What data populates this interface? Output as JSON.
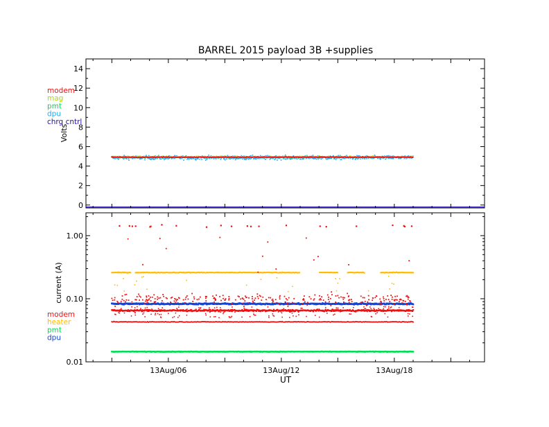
{
  "title": "BARREL 2015 payload 3B +supplies",
  "colors": {
    "modem": "#ee1111",
    "mag": "#aadd00",
    "heater": "#ffbb00",
    "pmt": "#00dd55",
    "dpu": "#22aaee",
    "dpu_current": "#1144dd",
    "chrg_cntrl": "#2211aa"
  },
  "chart_data": [
    {
      "type": "scatter",
      "panel": "voltage",
      "title": "BARREL 2015 payload 3B +supplies",
      "ylabel": "Volts",
      "xlabel": "",
      "ylim": [
        -0.3,
        15
      ],
      "yscale": "linear",
      "yticks": [
        "0",
        "2",
        "4",
        "6",
        "8",
        "10",
        "12",
        "14"
      ],
      "legend": [
        "modem",
        "mag",
        "pmt",
        "dpu",
        "chrg cntrl"
      ],
      "legend_placement": "left",
      "xlim": [
        "13Aug/01 15:00",
        "13Aug/22 19:00"
      ],
      "series": [
        {
          "name": "dpu",
          "typical": 4.85,
          "spread": 0.22,
          "x_range": [
            "13Aug/03",
            "13Aug/19"
          ]
        },
        {
          "name": "pmt",
          "typical": 4.9,
          "spread": 0.08,
          "x_range": [
            "13Aug/03",
            "13Aug/19"
          ]
        },
        {
          "name": "mag",
          "typical": 4.95,
          "spread": 0.06,
          "x_range": [
            "13Aug/03",
            "13Aug/19"
          ]
        },
        {
          "name": "modem",
          "typical": 4.9,
          "spread": 0.05,
          "x_range": [
            "13Aug/03",
            "13Aug/19"
          ]
        },
        {
          "name": "chrg cntrl",
          "typical": -0.2,
          "spread": 0,
          "x_range": [
            "13Aug/01 15:00",
            "13Aug/22 19:00"
          ]
        }
      ]
    },
    {
      "type": "scatter",
      "panel": "current",
      "ylabel": "current (A)",
      "xlabel": "UT",
      "yscale": "log",
      "ylim": [
        0.01,
        2.3
      ],
      "yticks": [
        "0.01",
        "0.10",
        "1.00"
      ],
      "xticks": [
        "13Aug/06",
        "13Aug/12",
        "13Aug/18"
      ],
      "xlim": [
        "13Aug/01 15:00",
        "13Aug/22 19:00"
      ],
      "legend": [
        "modem",
        "heater",
        "pmt",
        "dpu"
      ],
      "legend_placement": "left",
      "series": [
        {
          "name": "heater",
          "typical": 0.26,
          "x_range": [
            "13Aug/03",
            "13Aug/19"
          ],
          "gaps": [
            [
              "13Aug/04",
              "13Aug/04 06:00"
            ],
            [
              "13Aug/13",
              "13Aug/14"
            ],
            [
              "13Aug/15",
              "13Aug/15 12:00"
            ],
            [
              "13Aug/16 10:00",
              "13Aug/17 06:00"
            ]
          ]
        },
        {
          "name": "dpu",
          "typical": 0.083,
          "x_range": [
            "13Aug/03",
            "13Aug/19"
          ]
        },
        {
          "name": "modem",
          "typical": 0.065,
          "x_range": [
            "13Aug/03",
            "13Aug/19"
          ]
        },
        {
          "name": "modem",
          "typical": 0.043,
          "x_range": [
            "13Aug/03",
            "13Aug/19"
          ]
        },
        {
          "name": "modem",
          "typical": 0.1,
          "x_range": [
            "13Aug/03",
            "13Aug/19"
          ]
        },
        {
          "name": "modem",
          "typical": 1.4,
          "x_range": [
            "13Aug/03",
            "13Aug/19"
          ]
        },
        {
          "name": "pmt",
          "typical": 0.0145,
          "x_range": [
            "13Aug/03",
            "13Aug/19"
          ]
        }
      ]
    }
  ]
}
